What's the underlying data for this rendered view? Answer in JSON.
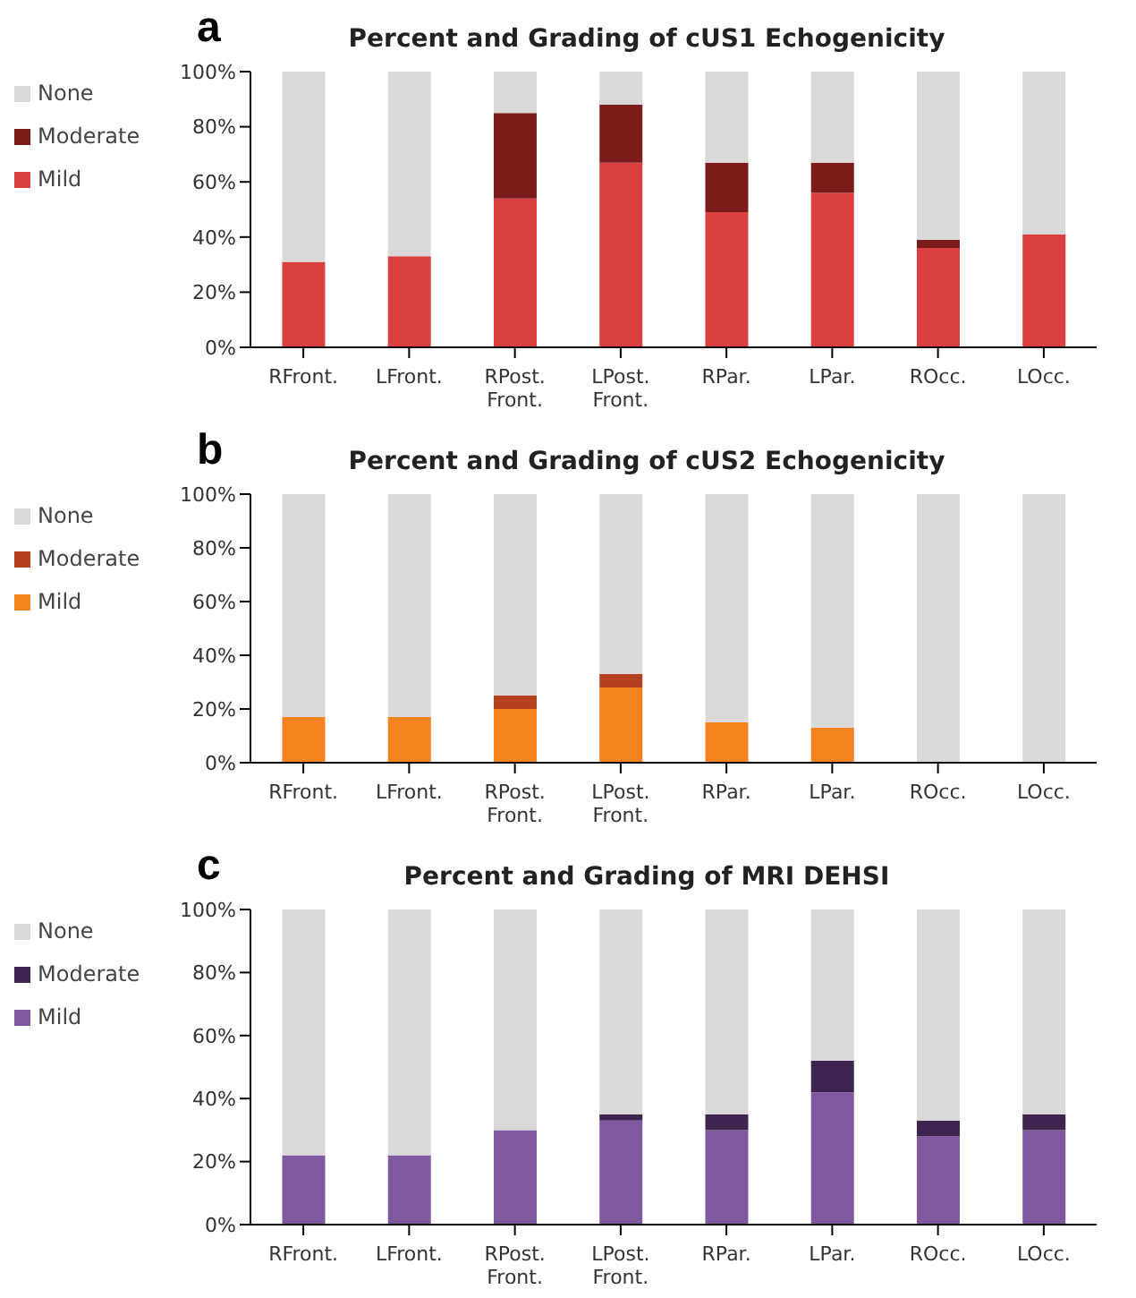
{
  "chart_data": [
    {
      "type": "bar",
      "title": "Percent and Grading of cUS1 Echogenicity",
      "annotations": [
        "a"
      ],
      "categories": [
        "RFront.",
        "LFront.",
        "RPost. Front.",
        "LPost. Front.",
        "RPar.",
        "LPar.",
        "ROcc.",
        "LOcc."
      ],
      "stacked": true,
      "legend": "left",
      "grid": false,
      "ylim": [
        0,
        100
      ],
      "yticks": [
        {
          "value": 0,
          "label": "0%"
        },
        {
          "value": 20,
          "label": "20%"
        },
        {
          "value": 40,
          "label": "40%"
        },
        {
          "value": 60,
          "label": "60%"
        },
        {
          "value": 80,
          "label": "80%"
        },
        {
          "value": 100,
          "label": "100%"
        }
      ],
      "series": [
        {
          "name": "Mild",
          "color": "#d9403f",
          "values": [
            31,
            33,
            54,
            67,
            49,
            56,
            36,
            41
          ]
        },
        {
          "name": "Moderate",
          "color": "#7b1c1a",
          "values": [
            0,
            0,
            31,
            21,
            18,
            11,
            3,
            0
          ]
        },
        {
          "name": "None",
          "color": "#d9d9d9",
          "values": [
            69,
            67,
            15,
            12,
            33,
            33,
            61,
            59
          ]
        }
      ]
    },
    {
      "type": "bar",
      "title": "Percent and Grading of cUS2 Echogenicity",
      "annotations": [
        "b"
      ],
      "categories": [
        "RFront.",
        "LFront.",
        "RPost. Front.",
        "LPost. Front.",
        "RPar.",
        "LPar.",
        "ROcc.",
        "LOcc."
      ],
      "stacked": true,
      "legend": "left",
      "grid": false,
      "ylim": [
        0,
        100
      ],
      "yticks": [
        {
          "value": 0,
          "label": "0%"
        },
        {
          "value": 20,
          "label": "20%"
        },
        {
          "value": 40,
          "label": "40%"
        },
        {
          "value": 60,
          "label": "60%"
        },
        {
          "value": 80,
          "label": "80%"
        },
        {
          "value": 100,
          "label": "100%"
        }
      ],
      "series": [
        {
          "name": "Mild",
          "color": "#f5821f",
          "values": [
            17,
            17,
            20,
            28,
            15,
            13,
            0,
            0
          ]
        },
        {
          "name": "Moderate",
          "color": "#b5401f",
          "values": [
            0,
            0,
            5,
            5,
            0,
            0,
            0,
            0
          ]
        },
        {
          "name": "None",
          "color": "#d9d9d9",
          "values": [
            83,
            83,
            75,
            67,
            85,
            87,
            100,
            100
          ]
        }
      ]
    },
    {
      "type": "bar",
      "title": "Percent and Grading of MRI DEHSI",
      "annotations": [
        "c"
      ],
      "categories": [
        "RFront.",
        "LFront.",
        "RPost. Front.",
        "LPost. Front.",
        "RPar.",
        "LPar.",
        "ROcc.",
        "LOcc."
      ],
      "stacked": true,
      "legend": "left",
      "grid": false,
      "ylim": [
        0,
        100
      ],
      "yticks": [
        {
          "value": 0,
          "label": "0%"
        },
        {
          "value": 20,
          "label": "20%"
        },
        {
          "value": 40,
          "label": "40%"
        },
        {
          "value": 60,
          "label": "60%"
        },
        {
          "value": 80,
          "label": "80%"
        },
        {
          "value": 100,
          "label": "100%"
        }
      ],
      "series": [
        {
          "name": "Mild",
          "color": "#8058a0",
          "values": [
            22,
            22,
            30,
            33,
            30,
            42,
            28,
            30
          ]
        },
        {
          "name": "Moderate",
          "color": "#3d2550",
          "values": [
            0,
            0,
            0,
            2,
            5,
            10,
            5,
            5
          ]
        },
        {
          "name": "None",
          "color": "#d9d9d9",
          "values": [
            78,
            78,
            70,
            65,
            65,
            48,
            67,
            65
          ]
        }
      ]
    }
  ]
}
